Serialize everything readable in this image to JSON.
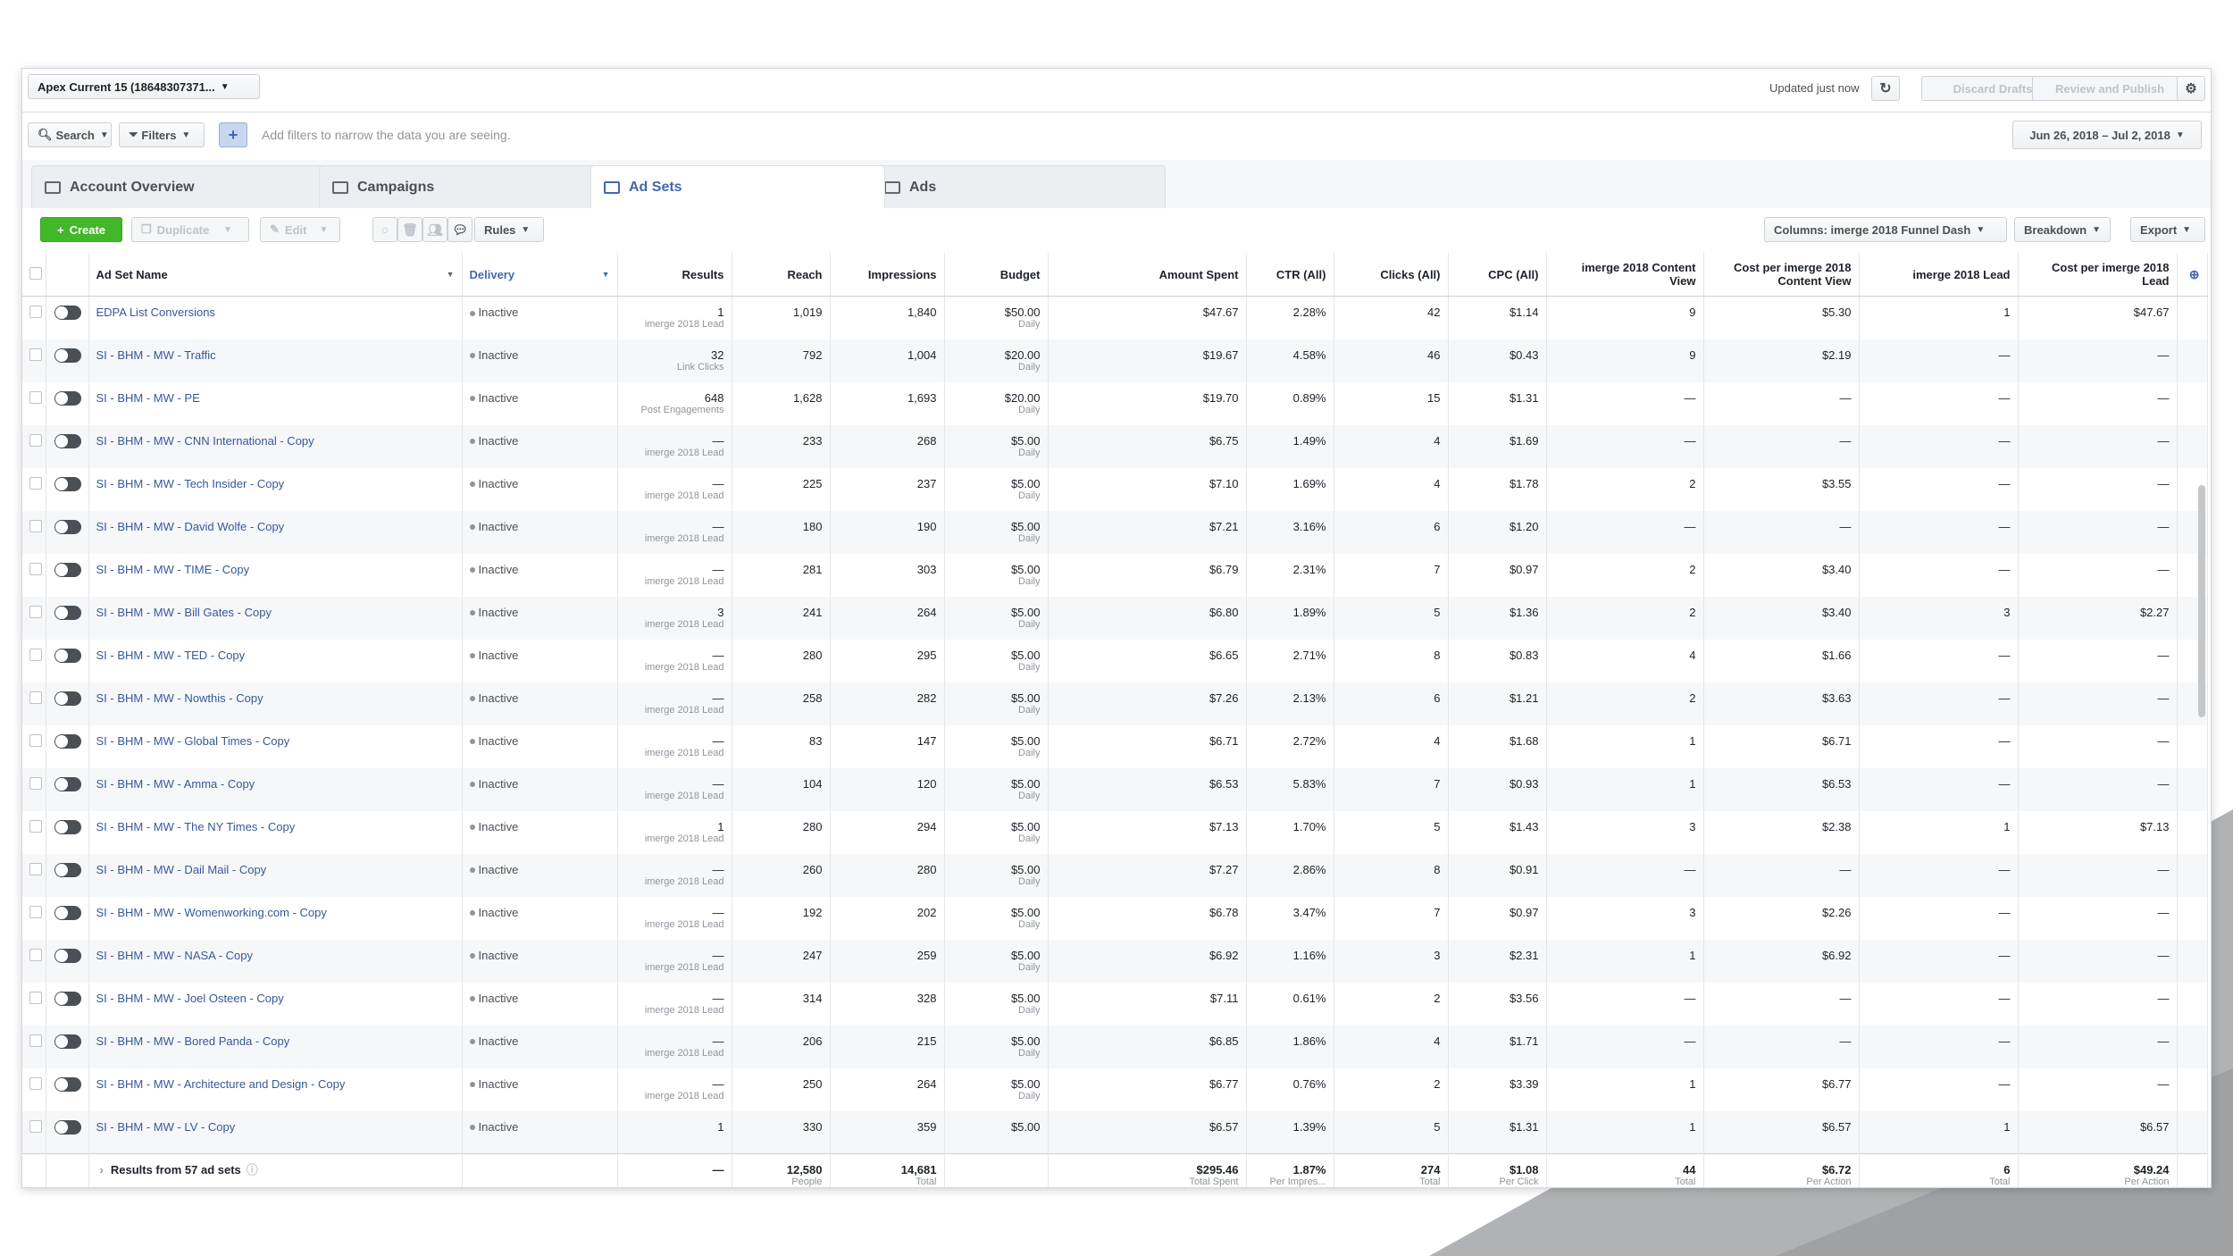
{
  "header": {
    "account": "Apex Current 15 (18648307371...",
    "updated": "Updated just now",
    "discard": "Discard Drafts",
    "review": "Review and Publish"
  },
  "filterbar": {
    "search": "Search",
    "filters": "Filters",
    "hint": "Add filters to narrow the data you are seeing.",
    "date_range": "Jun 26, 2018 – Jul 2, 2018"
  },
  "tabs": [
    "Account Overview",
    "Campaigns",
    "Ad Sets",
    "Ads"
  ],
  "toolbar": {
    "create": "Create",
    "duplicate": "Duplicate",
    "edit": "Edit",
    "rules": "Rules",
    "columns": "Columns: imerge 2018 Funnel Dash",
    "breakdown": "Breakdown",
    "export": "Export"
  },
  "columns": [
    "Ad Set Name",
    "Delivery",
    "Results",
    "Reach",
    "Impressions",
    "Budget",
    "Amount Spent",
    "CTR (All)",
    "Clicks (All)",
    "CPC (All)",
    "imerge 2018 Content View",
    "Cost per imerge 2018 Content View",
    "imerge 2018 Lead",
    "Cost per imerge 2018 Lead"
  ],
  "rows": [
    [
      "EDPA List Conversions",
      "Inactive",
      "1",
      "imerge 2018 Lead",
      "1,019",
      "1,840",
      "$50.00",
      "Daily",
      "$47.67",
      "2.28%",
      "42",
      "$1.14",
      "9",
      "$5.30",
      "1",
      "$47.67"
    ],
    [
      "SI - BHM - MW - Traffic",
      "Inactive",
      "32",
      "Link Clicks",
      "792",
      "1,004",
      "$20.00",
      "Daily",
      "$19.67",
      "4.58%",
      "46",
      "$0.43",
      "9",
      "$2.19",
      "—",
      "—"
    ],
    [
      "SI - BHM - MW - PE",
      "Inactive",
      "648",
      "Post Engagements",
      "1,628",
      "1,693",
      "$20.00",
      "Daily",
      "$19.70",
      "0.89%",
      "15",
      "$1.31",
      "—",
      "—",
      "—",
      "—"
    ],
    [
      "SI - BHM - MW - CNN International - Copy",
      "Inactive",
      "—",
      "imerge 2018 Lead",
      "233",
      "268",
      "$5.00",
      "Daily",
      "$6.75",
      "1.49%",
      "4",
      "$1.69",
      "—",
      "—",
      "—",
      "—"
    ],
    [
      "SI - BHM - MW - Tech Insider - Copy",
      "Inactive",
      "—",
      "imerge 2018 Lead",
      "225",
      "237",
      "$5.00",
      "Daily",
      "$7.10",
      "1.69%",
      "4",
      "$1.78",
      "2",
      "$3.55",
      "—",
      "—"
    ],
    [
      "SI - BHM - MW - David Wolfe - Copy",
      "Inactive",
      "—",
      "imerge 2018 Lead",
      "180",
      "190",
      "$5.00",
      "Daily",
      "$7.21",
      "3.16%",
      "6",
      "$1.20",
      "—",
      "—",
      "—",
      "—"
    ],
    [
      "SI - BHM - MW - TIME - Copy",
      "Inactive",
      "—",
      "imerge 2018 Lead",
      "281",
      "303",
      "$5.00",
      "Daily",
      "$6.79",
      "2.31%",
      "7",
      "$0.97",
      "2",
      "$3.40",
      "—",
      "—"
    ],
    [
      "SI - BHM - MW - Bill Gates - Copy",
      "Inactive",
      "3",
      "imerge 2018 Lead",
      "241",
      "264",
      "$5.00",
      "Daily",
      "$6.80",
      "1.89%",
      "5",
      "$1.36",
      "2",
      "$3.40",
      "3",
      "$2.27"
    ],
    [
      "SI - BHM - MW - TED - Copy",
      "Inactive",
      "—",
      "imerge 2018 Lead",
      "280",
      "295",
      "$5.00",
      "Daily",
      "$6.65",
      "2.71%",
      "8",
      "$0.83",
      "4",
      "$1.66",
      "—",
      "—"
    ],
    [
      "SI - BHM - MW - Nowthis - Copy",
      "Inactive",
      "—",
      "imerge 2018 Lead",
      "258",
      "282",
      "$5.00",
      "Daily",
      "$7.26",
      "2.13%",
      "6",
      "$1.21",
      "2",
      "$3.63",
      "—",
      "—"
    ],
    [
      "SI - BHM - MW - Global Times - Copy",
      "Inactive",
      "—",
      "imerge 2018 Lead",
      "83",
      "147",
      "$5.00",
      "Daily",
      "$6.71",
      "2.72%",
      "4",
      "$1.68",
      "1",
      "$6.71",
      "—",
      "—"
    ],
    [
      "SI - BHM - MW - Amma - Copy",
      "Inactive",
      "—",
      "imerge 2018 Lead",
      "104",
      "120",
      "$5.00",
      "Daily",
      "$6.53",
      "5.83%",
      "7",
      "$0.93",
      "1",
      "$6.53",
      "—",
      "—"
    ],
    [
      "SI - BHM - MW - The NY Times - Copy",
      "Inactive",
      "1",
      "imerge 2018 Lead",
      "280",
      "294",
      "$5.00",
      "Daily",
      "$7.13",
      "1.70%",
      "5",
      "$1.43",
      "3",
      "$2.38",
      "1",
      "$7.13"
    ],
    [
      "SI - BHM - MW - Dail Mail - Copy",
      "Inactive",
      "—",
      "imerge 2018 Lead",
      "260",
      "280",
      "$5.00",
      "Daily",
      "$7.27",
      "2.86%",
      "8",
      "$0.91",
      "—",
      "—",
      "—",
      "—"
    ],
    [
      "SI - BHM - MW - Womenworking.com - Copy",
      "Inactive",
      "—",
      "imerge 2018 Lead",
      "192",
      "202",
      "$5.00",
      "Daily",
      "$6.78",
      "3.47%",
      "7",
      "$0.97",
      "3",
      "$2.26",
      "—",
      "—"
    ],
    [
      "SI - BHM - MW - NASA - Copy",
      "Inactive",
      "—",
      "imerge 2018 Lead",
      "247",
      "259",
      "$5.00",
      "Daily",
      "$6.92",
      "1.16%",
      "3",
      "$2.31",
      "1",
      "$6.92",
      "—",
      "—"
    ],
    [
      "SI - BHM - MW - Joel Osteen - Copy",
      "Inactive",
      "—",
      "imerge 2018 Lead",
      "314",
      "328",
      "$5.00",
      "Daily",
      "$7.11",
      "0.61%",
      "2",
      "$3.56",
      "—",
      "—",
      "—",
      "—"
    ],
    [
      "SI - BHM - MW - Bored Panda - Copy",
      "Inactive",
      "—",
      "imerge 2018 Lead",
      "206",
      "215",
      "$5.00",
      "Daily",
      "$6.85",
      "1.86%",
      "4",
      "$1.71",
      "—",
      "—",
      "—",
      "—"
    ],
    [
      "SI - BHM - MW - Architecture and Design - Copy",
      "Inactive",
      "—",
      "imerge 2018 Lead",
      "250",
      "264",
      "$5.00",
      "Daily",
      "$6.77",
      "0.76%",
      "2",
      "$3.39",
      "1",
      "$6.77",
      "—",
      "—"
    ],
    [
      "SI - BHM - MW - LV - Copy",
      "Inactive",
      "1",
      "",
      "330",
      "359",
      "$5.00",
      "",
      "$6.57",
      "1.39%",
      "5",
      "$1.31",
      "1",
      "$6.57",
      "1",
      "$6.57"
    ]
  ],
  "summary": {
    "label": "Results from 57 ad sets",
    "results": "—",
    "reach": "12,580",
    "reach_sub": "People",
    "impressions": "14,681",
    "impressions_sub": "Total",
    "spent": "$295.46",
    "spent_sub": "Total Spent",
    "ctr": "1.87%",
    "ctr_sub": "Per Impres...",
    "clicks": "274",
    "clicks_sub": "Total",
    "cpc": "$1.08",
    "cpc_sub": "Per Click",
    "cv": "44",
    "cv_sub": "Total",
    "cost_cv": "$6.72",
    "cost_cv_sub": "Per Action",
    "lead": "6",
    "lead_sub": "Total",
    "cost_lead": "$49.24",
    "cost_lead_sub": "Per Action"
  },
  "colors": {
    "accent": "#4267b2",
    "create": "#42b72a",
    "link": "#365899"
  }
}
